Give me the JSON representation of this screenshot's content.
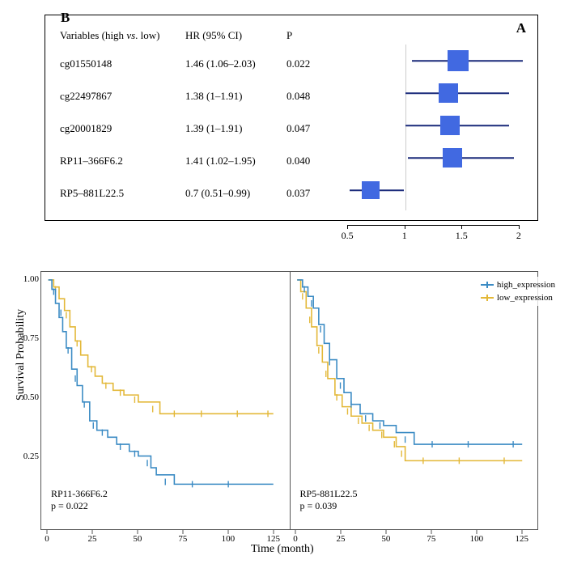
{
  "panelA": {
    "label": "A",
    "headers": {
      "variables": "Variables (high vs. low)",
      "hr": "HR (95% CI)",
      "p": "P"
    },
    "axis": {
      "min": 0.4,
      "max": 2.1,
      "ref": 1,
      "ticks": [
        0.5,
        1,
        1.5,
        2
      ]
    },
    "colors": {
      "box": "#4169e1",
      "whisker": "#1a2a7a",
      "ref": "#cccccc"
    },
    "rows": [
      {
        "name": "cg01550148",
        "hr_text": "1.46 (1.06–2.03)",
        "p": "0.022",
        "hr": 1.46,
        "lo": 1.06,
        "hi": 2.03,
        "boxSize": 26
      },
      {
        "name": "cg22497867",
        "hr_text": "1.38 (1–1.91)",
        "p": "0.048",
        "hr": 1.38,
        "lo": 1.0,
        "hi": 1.91,
        "boxSize": 24
      },
      {
        "name": "cg20001829",
        "hr_text": "1.39 (1–1.91)",
        "p": "0.047",
        "hr": 1.39,
        "lo": 1.0,
        "hi": 1.91,
        "boxSize": 24
      },
      {
        "name": "RP11–366F6.2",
        "hr_text": "1.41 (1.02–1.95)",
        "p": "0.040",
        "hr": 1.41,
        "lo": 1.02,
        "hi": 1.95,
        "boxSize": 24
      },
      {
        "name": "RP5–881L22.5",
        "hr_text": "0.7 (0.51–0.99)",
        "p": "0.037",
        "hr": 0.7,
        "lo": 0.51,
        "hi": 0.99,
        "boxSize": 22
      }
    ]
  },
  "panelB": {
    "label": "B",
    "ylabel": "Survival Probability",
    "xlabel": "Time (month)",
    "ylim": [
      0,
      1
    ],
    "yticks": [
      0.25,
      0.5,
      0.75,
      1.0
    ],
    "xlim": [
      0,
      130
    ],
    "xticks": [
      0,
      25,
      50,
      75,
      100,
      125
    ],
    "colors": {
      "high": "#3b8bc4",
      "low": "#e3b838",
      "axis": "#555555"
    },
    "legend": [
      {
        "key": "high",
        "label": "high_expression"
      },
      {
        "key": "low",
        "label": "low_expression"
      }
    ],
    "charts": [
      {
        "title": "RP11-366F6.2",
        "p_text": "p = 0.022",
        "series": {
          "high": [
            [
              0,
              1.0
            ],
            [
              2,
              0.96
            ],
            [
              4,
              0.9
            ],
            [
              6,
              0.84
            ],
            [
              8,
              0.78
            ],
            [
              10,
              0.71
            ],
            [
              13,
              0.62
            ],
            [
              16,
              0.55
            ],
            [
              19,
              0.48
            ],
            [
              23,
              0.4
            ],
            [
              27,
              0.36
            ],
            [
              33,
              0.33
            ],
            [
              38,
              0.3
            ],
            [
              45,
              0.27
            ],
            [
              50,
              0.25
            ],
            [
              57,
              0.2
            ],
            [
              60,
              0.17
            ],
            [
              70,
              0.13
            ],
            [
              125,
              0.13
            ]
          ],
          "low": [
            [
              0,
              1.0
            ],
            [
              3,
              0.97
            ],
            [
              6,
              0.92
            ],
            [
              9,
              0.87
            ],
            [
              12,
              0.8
            ],
            [
              15,
              0.74
            ],
            [
              18,
              0.68
            ],
            [
              22,
              0.63
            ],
            [
              26,
              0.59
            ],
            [
              30,
              0.56
            ],
            [
              36,
              0.53
            ],
            [
              42,
              0.51
            ],
            [
              50,
              0.48
            ],
            [
              62,
              0.43
            ],
            [
              125,
              0.43
            ]
          ]
        },
        "censor": {
          "high": [
            [
              3,
              0.95
            ],
            [
              7,
              0.86
            ],
            [
              11,
              0.7
            ],
            [
              15,
              0.58
            ],
            [
              20,
              0.47
            ],
            [
              25,
              0.38
            ],
            [
              30,
              0.35
            ],
            [
              40,
              0.29
            ],
            [
              48,
              0.26
            ],
            [
              55,
              0.22
            ],
            [
              65,
              0.14
            ],
            [
              80,
              0.13
            ],
            [
              100,
              0.13
            ]
          ],
          "low": [
            [
              4,
              0.96
            ],
            [
              10,
              0.85
            ],
            [
              16,
              0.73
            ],
            [
              24,
              0.62
            ],
            [
              32,
              0.55
            ],
            [
              40,
              0.52
            ],
            [
              48,
              0.49
            ],
            [
              58,
              0.45
            ],
            [
              70,
              0.43
            ],
            [
              85,
              0.43
            ],
            [
              105,
              0.43
            ],
            [
              122,
              0.43
            ]
          ]
        }
      },
      {
        "title": "RP5-881L22.5",
        "p_text": "p = 0.039",
        "series": {
          "high": [
            [
              0,
              1.0
            ],
            [
              3,
              0.97
            ],
            [
              6,
              0.93
            ],
            [
              9,
              0.88
            ],
            [
              12,
              0.81
            ],
            [
              15,
              0.73
            ],
            [
              18,
              0.66
            ],
            [
              22,
              0.58
            ],
            [
              26,
              0.52
            ],
            [
              30,
              0.47
            ],
            [
              35,
              0.43
            ],
            [
              42,
              0.4
            ],
            [
              48,
              0.38
            ],
            [
              55,
              0.35
            ],
            [
              65,
              0.3
            ],
            [
              125,
              0.3
            ]
          ],
          "low": [
            [
              0,
              1.0
            ],
            [
              2,
              0.95
            ],
            [
              5,
              0.88
            ],
            [
              8,
              0.8
            ],
            [
              11,
              0.72
            ],
            [
              14,
              0.65
            ],
            [
              17,
              0.58
            ],
            [
              21,
              0.51
            ],
            [
              25,
              0.46
            ],
            [
              30,
              0.42
            ],
            [
              36,
              0.39
            ],
            [
              42,
              0.36
            ],
            [
              48,
              0.33
            ],
            [
              55,
              0.29
            ],
            [
              60,
              0.23
            ],
            [
              125,
              0.23
            ]
          ]
        },
        "censor": {
          "high": [
            [
              4,
              0.96
            ],
            [
              8,
              0.9
            ],
            [
              13,
              0.79
            ],
            [
              18,
              0.65
            ],
            [
              24,
              0.55
            ],
            [
              30,
              0.47
            ],
            [
              38,
              0.41
            ],
            [
              46,
              0.38
            ],
            [
              60,
              0.32
            ],
            [
              75,
              0.3
            ],
            [
              95,
              0.3
            ],
            [
              120,
              0.3
            ]
          ],
          "low": [
            [
              3,
              0.93
            ],
            [
              7,
              0.83
            ],
            [
              12,
              0.7
            ],
            [
              16,
              0.6
            ],
            [
              22,
              0.5
            ],
            [
              28,
              0.44
            ],
            [
              34,
              0.4
            ],
            [
              40,
              0.37
            ],
            [
              47,
              0.34
            ],
            [
              54,
              0.3
            ],
            [
              58,
              0.26
            ],
            [
              70,
              0.23
            ],
            [
              90,
              0.23
            ],
            [
              115,
              0.23
            ]
          ]
        }
      }
    ]
  }
}
